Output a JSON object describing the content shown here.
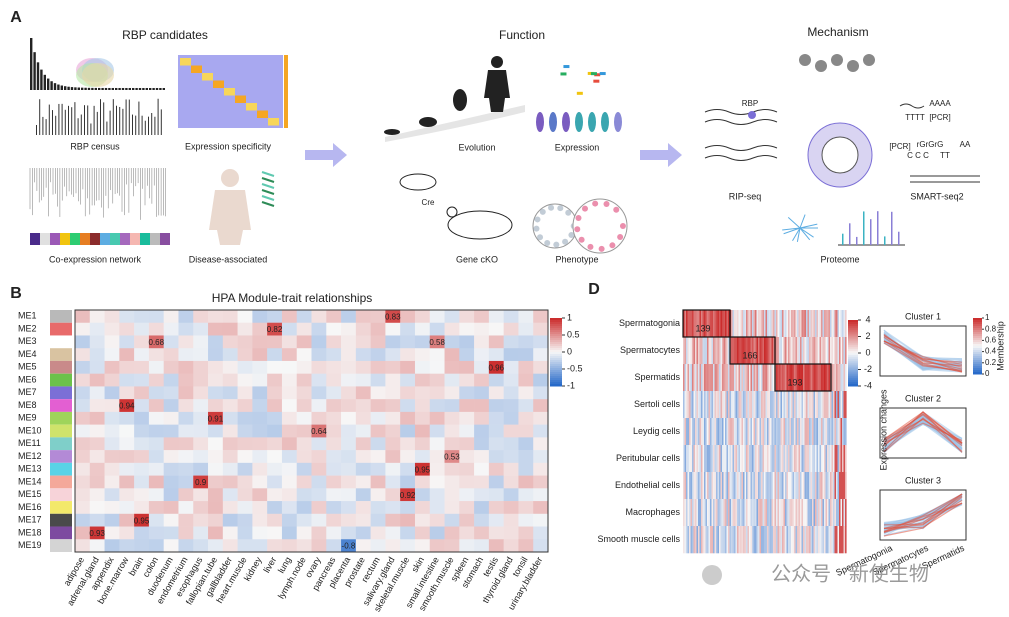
{
  "panel_a": {
    "label": "A",
    "rbp_candidates": {
      "title": "RBP candidates",
      "items": [
        "RBP census",
        "Expression specificity",
        "Co-expression network",
        "Disease-associated"
      ]
    },
    "function": {
      "title": "Function",
      "items": [
        "Evolution",
        "Expression",
        "Gene cKO",
        "Phenotype"
      ],
      "cre": "Cre"
    },
    "mechanism": {
      "title": "Mechanism",
      "rbp": "RBP",
      "rip_seq": "RIP-seq",
      "smart_seq": {
        "texts": [
          "AAAA",
          "TTTT",
          "[PCR]",
          "[PCR]",
          "rGrGrG",
          "AA",
          "C C C",
          "TT"
        ],
        "label": "SMART-seq2"
      },
      "proteome": "Proteome"
    }
  },
  "panel_b": {
    "label": "B",
    "title": "HPA Module-trait relationships",
    "modules": [
      "ME1",
      "ME2",
      "ME3",
      "ME4",
      "ME5",
      "ME6",
      "ME7",
      "ME8",
      "ME9",
      "ME10",
      "ME11",
      "ME12",
      "ME13",
      "ME14",
      "ME15",
      "ME16",
      "ME17",
      "ME18",
      "ME19"
    ],
    "module_colors": [
      "#b9b9b9",
      "#e86a6a",
      "#ffffff",
      "#d9c3a1",
      "#c98a8a",
      "#6cc24a",
      "#7b6fd6",
      "#e35fd2",
      "#9fd45b",
      "#cfe36b",
      "#7fcfc9",
      "#b38ad6",
      "#59d3e6",
      "#f4a89a",
      "#f7d3d9",
      "#f3e96a",
      "#4a4a4a",
      "#7d4aa0",
      "#d4d4d4"
    ],
    "tissues": [
      "adipose",
      "adrenal.gland",
      "appendix",
      "bone.marrow",
      "brain",
      "colon",
      "duodenum",
      "endometrium",
      "esophagus",
      "fallopian.tube",
      "gallbladder",
      "heart.muscle",
      "kidney",
      "liver",
      "lung",
      "lymph.node",
      "ovary",
      "pancreas",
      "placenta",
      "prostate",
      "rectum",
      "salivary.gland",
      "skeletal.muscle",
      "skin",
      "small.intestine",
      "smooth.muscle",
      "spleen",
      "stomach",
      "testis",
      "thyroid.gland",
      "tonsil",
      "urinary.bladder"
    ],
    "highlight": "testis",
    "highlight_color": "#d62728",
    "colorbar_ticks": [
      1,
      0.5,
      0,
      -0.5,
      -1
    ],
    "annotated_cells": [
      {
        "module": 0,
        "tissue": 21,
        "value": 0.83
      },
      {
        "module": 1,
        "tissue": 13,
        "value": 0.82
      },
      {
        "module": 2,
        "tissue": 5,
        "value": 0.68
      },
      {
        "module": 2,
        "tissue": 24,
        "value": 0.58
      },
      {
        "module": 4,
        "tissue": 28,
        "value": 0.96
      },
      {
        "module": 7,
        "tissue": 3,
        "value": 0.94
      },
      {
        "module": 8,
        "tissue": 9,
        "value": 0.91
      },
      {
        "module": 9,
        "tissue": 16,
        "value": 0.64
      },
      {
        "module": 11,
        "tissue": 25,
        "value": 0.53
      },
      {
        "module": 12,
        "tissue": 23,
        "value": 0.95
      },
      {
        "module": 13,
        "tissue": 8,
        "value": 0.9
      },
      {
        "module": 14,
        "tissue": 22,
        "value": 0.92
      },
      {
        "module": 16,
        "tissue": 4,
        "value": 0.95
      },
      {
        "module": 17,
        "tissue": 1,
        "value": 0.93
      },
      {
        "module": 18,
        "tissue": 18,
        "value": -0.8
      }
    ]
  },
  "panel_d": {
    "label": "D",
    "cell_types": [
      "Spermatogonia",
      "Spermatocytes",
      "Spermatids",
      "Sertoli cells",
      "Leydig cells",
      "Peritubular cells",
      "Endothelial  cells",
      "Macrophages",
      "Smooth muscle cells"
    ],
    "counts": [
      139,
      166,
      193
    ],
    "colorbar_ticks": [
      4,
      2,
      0,
      -2,
      -4
    ],
    "clusters": [
      "Cluster 1",
      "Cluster 2",
      "Cluster 3"
    ],
    "y_label": "Expression changes",
    "membership_label": "Membership",
    "membership_ticks": [
      1,
      0.8,
      0.6,
      0.4,
      0.2,
      0
    ],
    "stages": [
      "Spermatogonia",
      "Spermatocytes",
      "Spermatids"
    ]
  },
  "watermark": "公众号 · 新使生物"
}
